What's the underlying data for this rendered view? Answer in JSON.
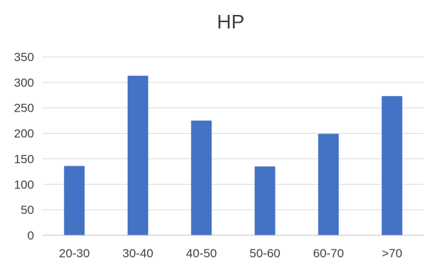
{
  "chart_data": {
    "type": "bar",
    "title": "HP",
    "xlabel": "",
    "ylabel": "",
    "categories": [
      "20-30",
      "30-40",
      "40-50",
      "50-60",
      "60-70",
      ">70"
    ],
    "values": [
      136,
      313,
      225,
      135,
      199,
      273
    ],
    "ylim": [
      0,
      350
    ],
    "yticks": [
      0,
      50,
      100,
      150,
      200,
      250,
      300,
      350
    ],
    "grid": true,
    "legend": "none",
    "bar_color": "#4472c4"
  }
}
